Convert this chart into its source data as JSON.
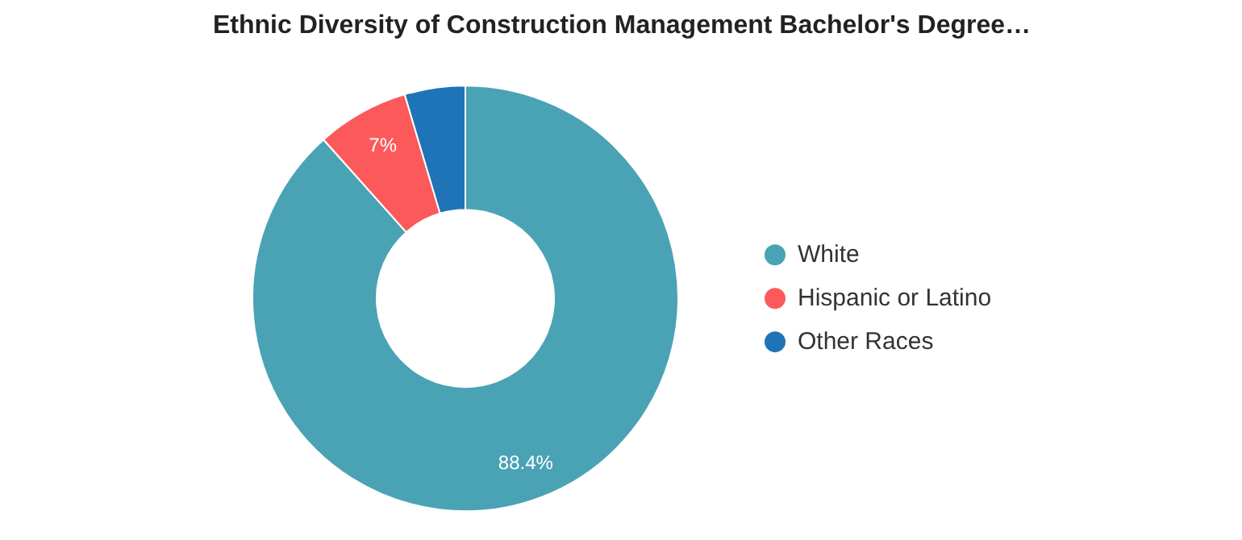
{
  "chart_data": {
    "type": "donut",
    "title": "Ethnic Diversity of Construction Management Bachelor's Degree…",
    "categories": [
      "White",
      "Hispanic or Latino",
      "Other Races"
    ],
    "values": [
      88.4,
      7,
      4.6
    ],
    "colors": [
      "#4aa3b5",
      "#fc5a5a",
      "#1f73b7"
    ],
    "value_labels": [
      "88.4%",
      "7%",
      null
    ],
    "legend": "right"
  }
}
